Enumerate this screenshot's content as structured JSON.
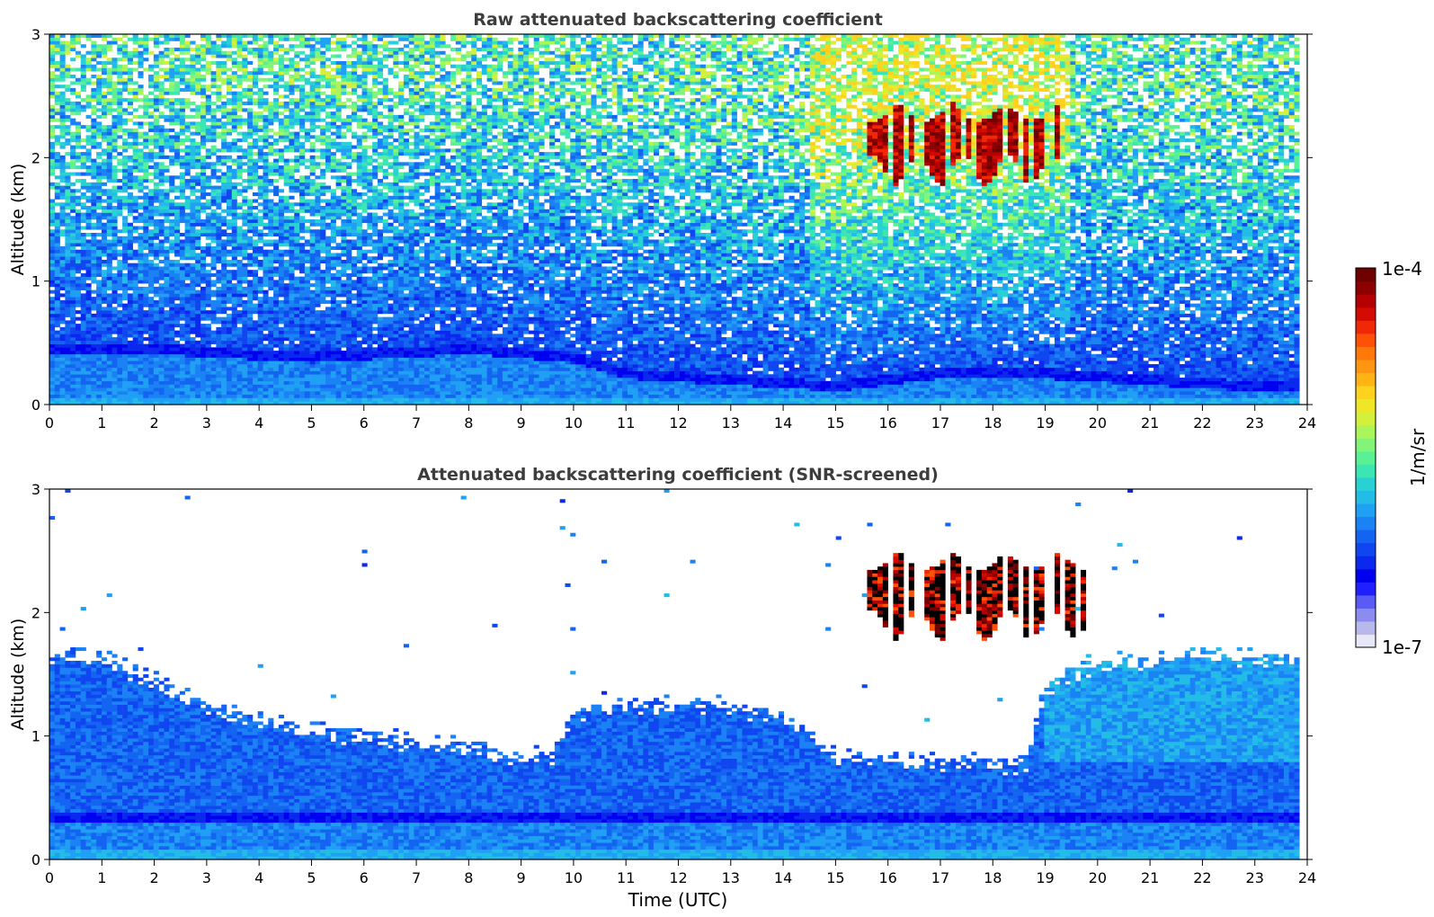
{
  "chart_data": [
    {
      "type": "heatmap",
      "title": "Raw attenuated backscattering coefficient",
      "xlabel": "",
      "ylabel": "Altitude (km)",
      "xlim": [
        0,
        24
      ],
      "ylim": [
        0,
        3
      ],
      "xticks": [
        0,
        1,
        2,
        3,
        4,
        5,
        6,
        7,
        8,
        9,
        10,
        11,
        12,
        13,
        14,
        15,
        16,
        17,
        18,
        19,
        20,
        21,
        22,
        23,
        24
      ],
      "yticks": [
        0,
        1,
        2,
        3
      ],
      "xtick_labels": [
        "0",
        "1",
        "2",
        "3",
        "4",
        "5",
        "6",
        "7",
        "8",
        "9",
        "10",
        "11",
        "12",
        "13",
        "14",
        "15",
        "16",
        "17",
        "18",
        "19",
        "20",
        "21",
        "22",
        "23",
        "24"
      ],
      "ytick_labels": [
        "0",
        "1",
        "2",
        "3"
      ],
      "data_x_max": 23.85,
      "features": {
        "boundary_layer_top_km": [
          [
            0,
            0.45
          ],
          [
            2,
            0.45
          ],
          [
            5,
            0.38
          ],
          [
            8,
            0.45
          ],
          [
            10,
            0.38
          ],
          [
            11,
            0.25
          ],
          [
            13,
            0.2
          ],
          [
            15,
            0.15
          ],
          [
            17,
            0.25
          ],
          [
            19,
            0.25
          ],
          [
            21,
            0.2
          ],
          [
            23,
            0.15
          ],
          [
            24,
            0.15
          ]
        ],
        "cloud_layer": {
          "time_start": 15.6,
          "time_end": 19.3,
          "altitude_bottom_km": 1.9,
          "altitude_top_km": 2.45
        },
        "noise_increasing_with_altitude": true
      }
    },
    {
      "type": "heatmap",
      "title": "Attenuated backscattering coefficient (SNR-screened)",
      "xlabel": "Time (UTC)",
      "ylabel": "Altitude (km)",
      "xlim": [
        0,
        24
      ],
      "ylim": [
        0,
        3
      ],
      "xticks": [
        0,
        1,
        2,
        3,
        4,
        5,
        6,
        7,
        8,
        9,
        10,
        11,
        12,
        13,
        14,
        15,
        16,
        17,
        18,
        19,
        20,
        21,
        22,
        23,
        24
      ],
      "yticks": [
        0,
        1,
        2,
        3
      ],
      "xtick_labels": [
        "0",
        "1",
        "2",
        "3",
        "4",
        "5",
        "6",
        "7",
        "8",
        "9",
        "10",
        "11",
        "12",
        "13",
        "14",
        "15",
        "16",
        "17",
        "18",
        "19",
        "20",
        "21",
        "22",
        "23",
        "24"
      ],
      "ytick_labels": [
        "0",
        "1",
        "2",
        "3"
      ],
      "data_x_max": 23.85,
      "features": {
        "signal_top_km": [
          [
            0,
            1.65
          ],
          [
            1,
            1.65
          ],
          [
            2,
            1.45
          ],
          [
            3,
            1.25
          ],
          [
            4,
            1.12
          ],
          [
            5,
            1.05
          ],
          [
            6,
            1.0
          ],
          [
            7,
            0.95
          ],
          [
            8,
            0.9
          ],
          [
            9,
            0.85
          ],
          [
            9.6,
            0.85
          ],
          [
            10,
            1.2
          ],
          [
            11,
            1.25
          ],
          [
            12,
            1.25
          ],
          [
            13,
            1.25
          ],
          [
            14,
            1.15
          ],
          [
            14.5,
            1.0
          ],
          [
            15,
            0.85
          ],
          [
            16,
            0.8
          ],
          [
            17,
            0.8
          ],
          [
            18,
            0.8
          ],
          [
            18.6,
            0.75
          ],
          [
            19,
            1.4
          ],
          [
            20,
            1.6
          ],
          [
            21,
            1.6
          ],
          [
            22,
            1.65
          ],
          [
            23,
            1.65
          ],
          [
            24,
            1.6
          ]
        ],
        "cloud_layer": {
          "time_start": 15.6,
          "time_end": 19.8,
          "altitude_bottom_km": 1.9,
          "altitude_top_km": 2.5
        }
      }
    }
  ],
  "colorbar": {
    "label": "1/m/sr",
    "max_label": "1e-4",
    "min_label": "1e-7",
    "min": 1e-07,
    "max": 0.0001,
    "scale": "log",
    "colors": [
      "#e8e8f8",
      "#b8b8ec",
      "#8c8cf0",
      "#5a5af4",
      "#1f1fff",
      "#0000f0",
      "#0a28ee",
      "#0f46f0",
      "#1464f2",
      "#1a82f4",
      "#1fa0f4",
      "#22bce6",
      "#28d2d2",
      "#3ce6b4",
      "#5af096",
      "#82f578",
      "#aaf55a",
      "#d2f03c",
      "#f0e628",
      "#ffd21e",
      "#ffb414",
      "#ff960f",
      "#ff780a",
      "#ff5008",
      "#f02805",
      "#d20a00",
      "#b40000",
      "#8c0000",
      "#6e0000"
    ]
  }
}
